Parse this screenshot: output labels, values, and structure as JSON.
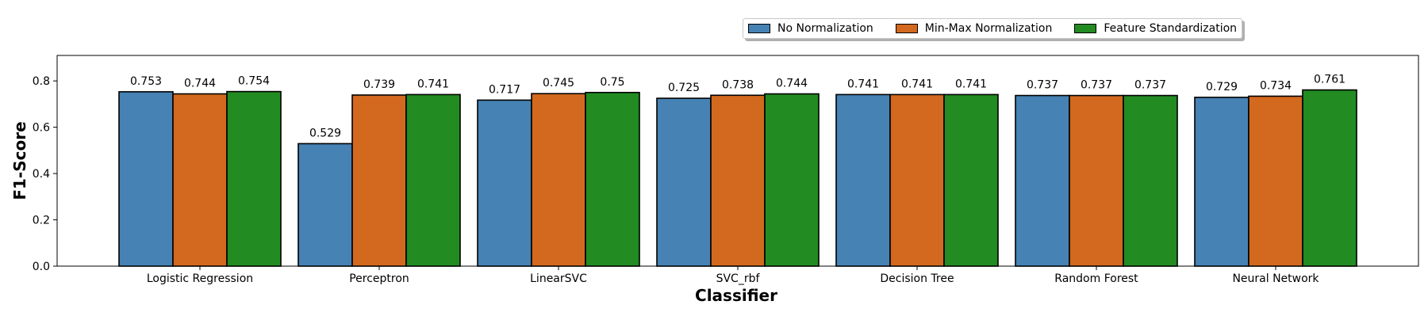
{
  "chart_data": {
    "type": "bar",
    "categories": [
      "Logistic Regression",
      "Perceptron",
      "LinearSVC",
      "SVC_rbf",
      "Decision Tree",
      "Random Forest",
      "Neural Network"
    ],
    "series": [
      {
        "name": "No Normalization",
        "color": "#4682b4",
        "values": [
          0.753,
          0.529,
          0.717,
          0.725,
          0.741,
          0.737,
          0.729
        ],
        "labels": [
          "0.753",
          "0.529",
          "0.717",
          "0.725",
          "0.741",
          "0.737",
          "0.729"
        ]
      },
      {
        "name": "Min-Max Normalization",
        "color": "#d2691e",
        "values": [
          0.744,
          0.739,
          0.745,
          0.738,
          0.741,
          0.737,
          0.734
        ],
        "labels": [
          "0.744",
          "0.739",
          "0.745",
          "0.738",
          "0.741",
          "0.737",
          "0.734"
        ]
      },
      {
        "name": "Feature Standardization",
        "color": "#228b22",
        "values": [
          0.754,
          0.741,
          0.75,
          0.744,
          0.741,
          0.737,
          0.761
        ],
        "labels": [
          "0.754",
          "0.741",
          "0.75",
          "0.744",
          "0.741",
          "0.737",
          "0.761"
        ]
      }
    ],
    "xlabel": "Classifier",
    "ylabel": "F1-Score",
    "ylim": [
      0,
      0.91
    ],
    "yticks": [
      0.0,
      0.2,
      0.4,
      0.6,
      0.8
    ],
    "ytick_labels": [
      "0.0",
      "0.2",
      "0.4",
      "0.6",
      "0.8"
    ],
    "grid": false,
    "legend_position": "top-right"
  }
}
